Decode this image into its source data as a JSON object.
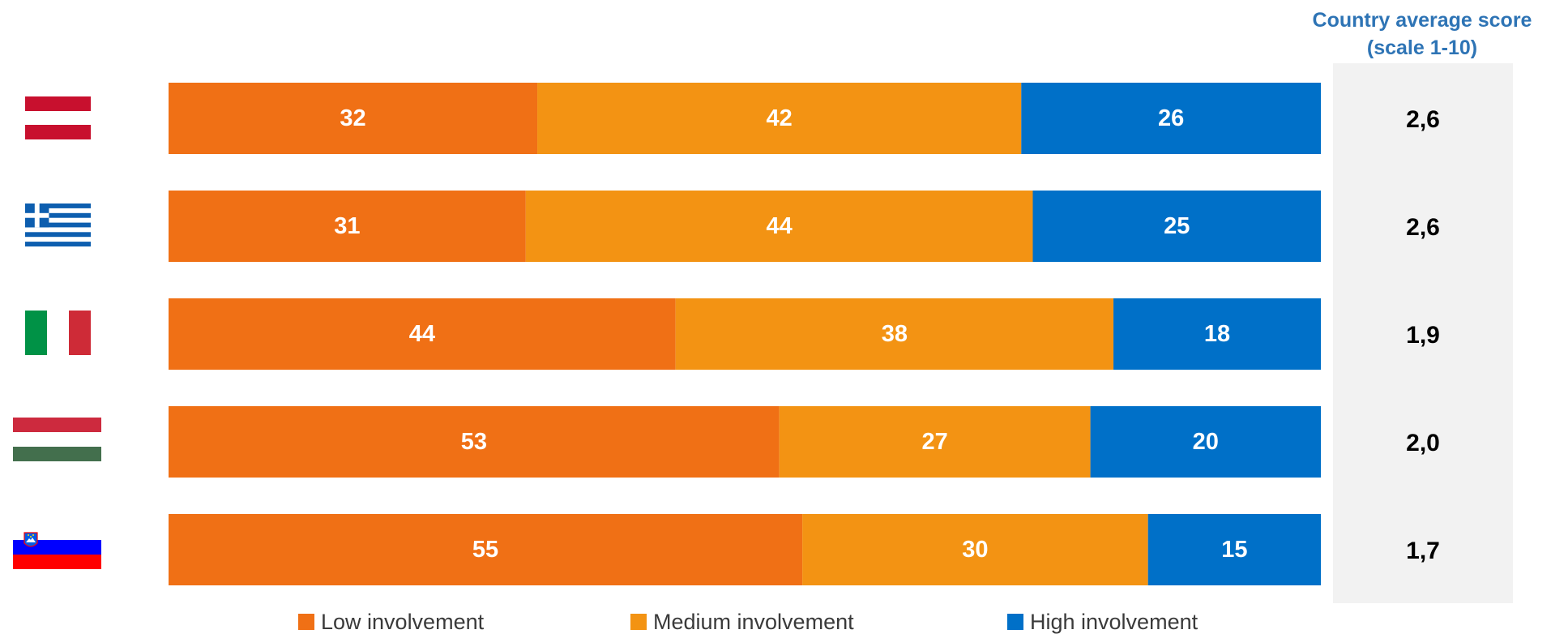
{
  "score_header": {
    "line1": "Country average score",
    "line2": "(scale 1-10)"
  },
  "chart_data": {
    "type": "bar",
    "stacked": true,
    "orientation": "horizontal",
    "categories": [
      "Austria",
      "Greece",
      "Italy",
      "Hungary",
      "Slovenia"
    ],
    "category_display": "flag-icons",
    "series": [
      {
        "name": "Low involvement",
        "color": "#f07015",
        "values": [
          32,
          31,
          44,
          53,
          55
        ]
      },
      {
        "name": "Medium involvement",
        "color": "#f39313",
        "values": [
          42,
          44,
          38,
          27,
          30
        ]
      },
      {
        "name": "High involvement",
        "color": "#0070c8",
        "values": [
          26,
          25,
          18,
          20,
          15
        ]
      }
    ],
    "xlim": [
      0,
      100
    ],
    "data_labels": true,
    "legend_position": "bottom",
    "grid": false
  },
  "country_scores": [
    "2,6",
    "2,6",
    "1,9",
    "2,0",
    "1,7"
  ],
  "flags": [
    {
      "icon": "flag-austria-icon"
    },
    {
      "icon": "flag-greece-icon"
    },
    {
      "icon": "flag-italy-icon"
    },
    {
      "icon": "flag-hungary-icon"
    },
    {
      "icon": "flag-slovenia-icon"
    }
  ],
  "colors": {
    "header_text": "#2e74b5",
    "score_panel": "#f2f2f2"
  }
}
